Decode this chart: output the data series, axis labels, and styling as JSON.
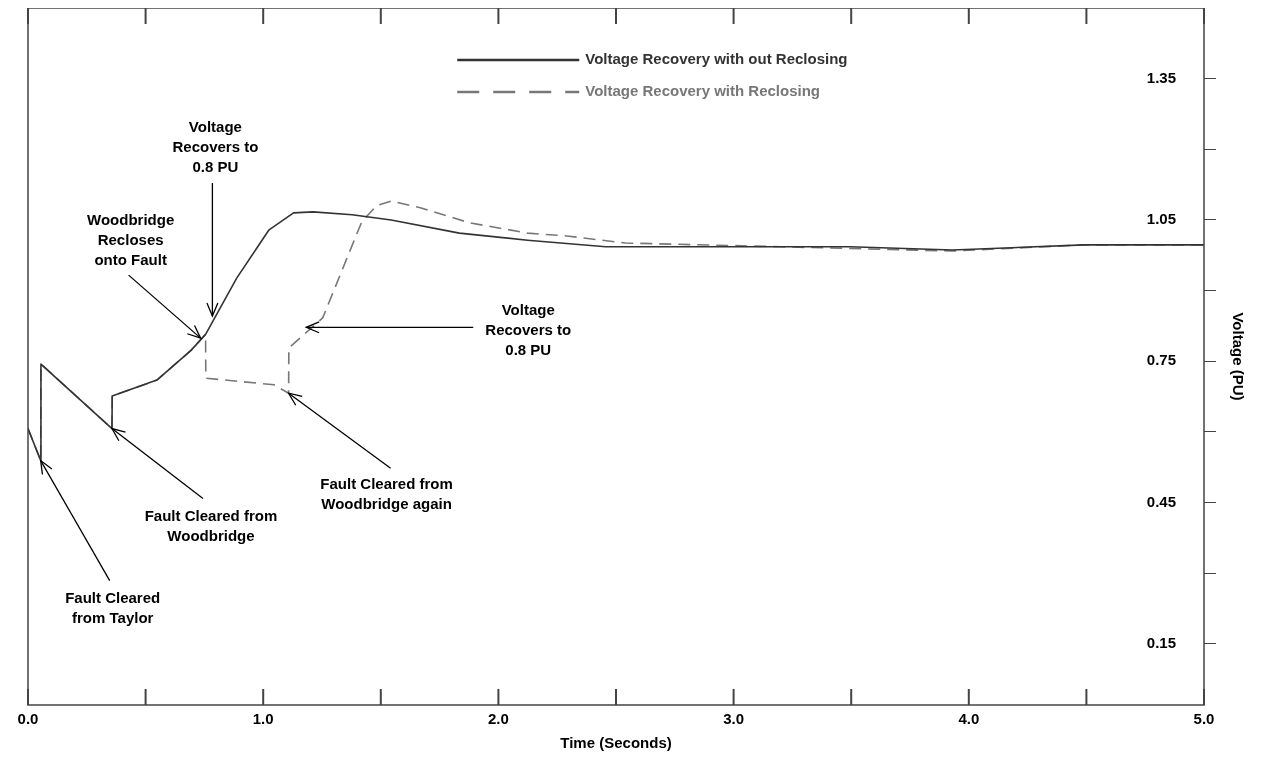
{
  "chart_data": {
    "type": "line",
    "xlabel": "Time (Seconds)",
    "ylabel": "Voltage (PU)",
    "xlim": [
      0,
      5
    ],
    "xticks": [
      {
        "value": 0,
        "label": "0.0"
      },
      {
        "value": 0.5,
        "label": null
      },
      {
        "value": 1,
        "label": "1.0"
      },
      {
        "value": 1.5,
        "label": null
      },
      {
        "value": 2,
        "label": "2.0"
      },
      {
        "value": 2.5,
        "label": null
      },
      {
        "value": 3,
        "label": "3.0"
      },
      {
        "value": 3.5,
        "label": null
      },
      {
        "value": 4,
        "label": "4.0"
      },
      {
        "value": 4.5,
        "label": null
      },
      {
        "value": 5,
        "label": "5.0"
      }
    ],
    "ylim": [
      0.02,
      1.5
    ],
    "yticks": [
      0.15,
      {
        "value": 0.3,
        "label": null
      },
      0.45,
      {
        "value": 0.6,
        "label": null
      },
      0.75,
      {
        "value": 0.9,
        "label": null
      },
      1.05,
      {
        "value": 1.2,
        "label": null
      },
      1.35
    ],
    "grid": false,
    "legend": "top",
    "marker": "none",
    "series": [
      {
        "name": "Voltage Recovery with out Reclosing",
        "color": "#333333",
        "line_style": "solid",
        "x": [
          0,
          0.054,
          0.055,
          0.357,
          0.358,
          0.548,
          0.693,
          0.755,
          0.888,
          1.025,
          1.129,
          1.212,
          1.378,
          1.544,
          1.834,
          2.124,
          2.456,
          3.494,
          3.93,
          4.49,
          5
        ],
        "values": [
          0.607,
          0.539,
          0.744,
          0.607,
          0.676,
          0.71,
          0.773,
          0.807,
          0.927,
          1.029,
          1.065,
          1.067,
          1.061,
          1.05,
          1.022,
          1.007,
          0.993,
          0.993,
          0.986,
          0.997,
          0.997
        ]
      },
      {
        "name": "Voltage Recovery with Reclosing",
        "color": "#777777",
        "line_style": "dashed",
        "x": [
          0,
          0.054,
          0.055,
          0.357,
          0.358,
          0.548,
          0.693,
          0.755,
          0.756,
          1.046,
          1.108,
          1.109,
          1.253,
          1.336,
          1.419,
          1.481,
          1.544,
          1.668,
          1.876,
          2.124,
          2.29,
          2.539,
          3.2,
          3.93,
          4.49,
          5
        ],
        "values": [
          0.607,
          0.539,
          0.744,
          0.607,
          0.676,
          0.71,
          0.773,
          0.807,
          0.714,
          0.7,
          0.682,
          0.778,
          0.842,
          0.944,
          1.046,
          1.08,
          1.09,
          1.076,
          1.044,
          1.022,
          1.016,
          1.001,
          0.993,
          0.984,
          0.997,
          0.997
        ]
      }
    ],
    "annotations": [
      {
        "text": "Fault Cleared from Taylor",
        "x": 0.054,
        "y": 0.539
      },
      {
        "text": "Fault Cleared from Woodbridge",
        "x": 0.357,
        "y": 0.607
      },
      {
        "text": "Woodbridge Recloses onto Fault",
        "x": 0.734,
        "y": 0.799
      },
      {
        "text": "Voltage Recovers to 0.8 PU",
        "x": 0.784,
        "y": 0.846
      },
      {
        "text": "Voltage Recovers to 0.8 PU",
        "x": 1.183,
        "y": 0.822
      },
      {
        "text": "Fault Cleared from Woodbridge again",
        "x": 1.108,
        "y": 0.682
      }
    ]
  }
}
